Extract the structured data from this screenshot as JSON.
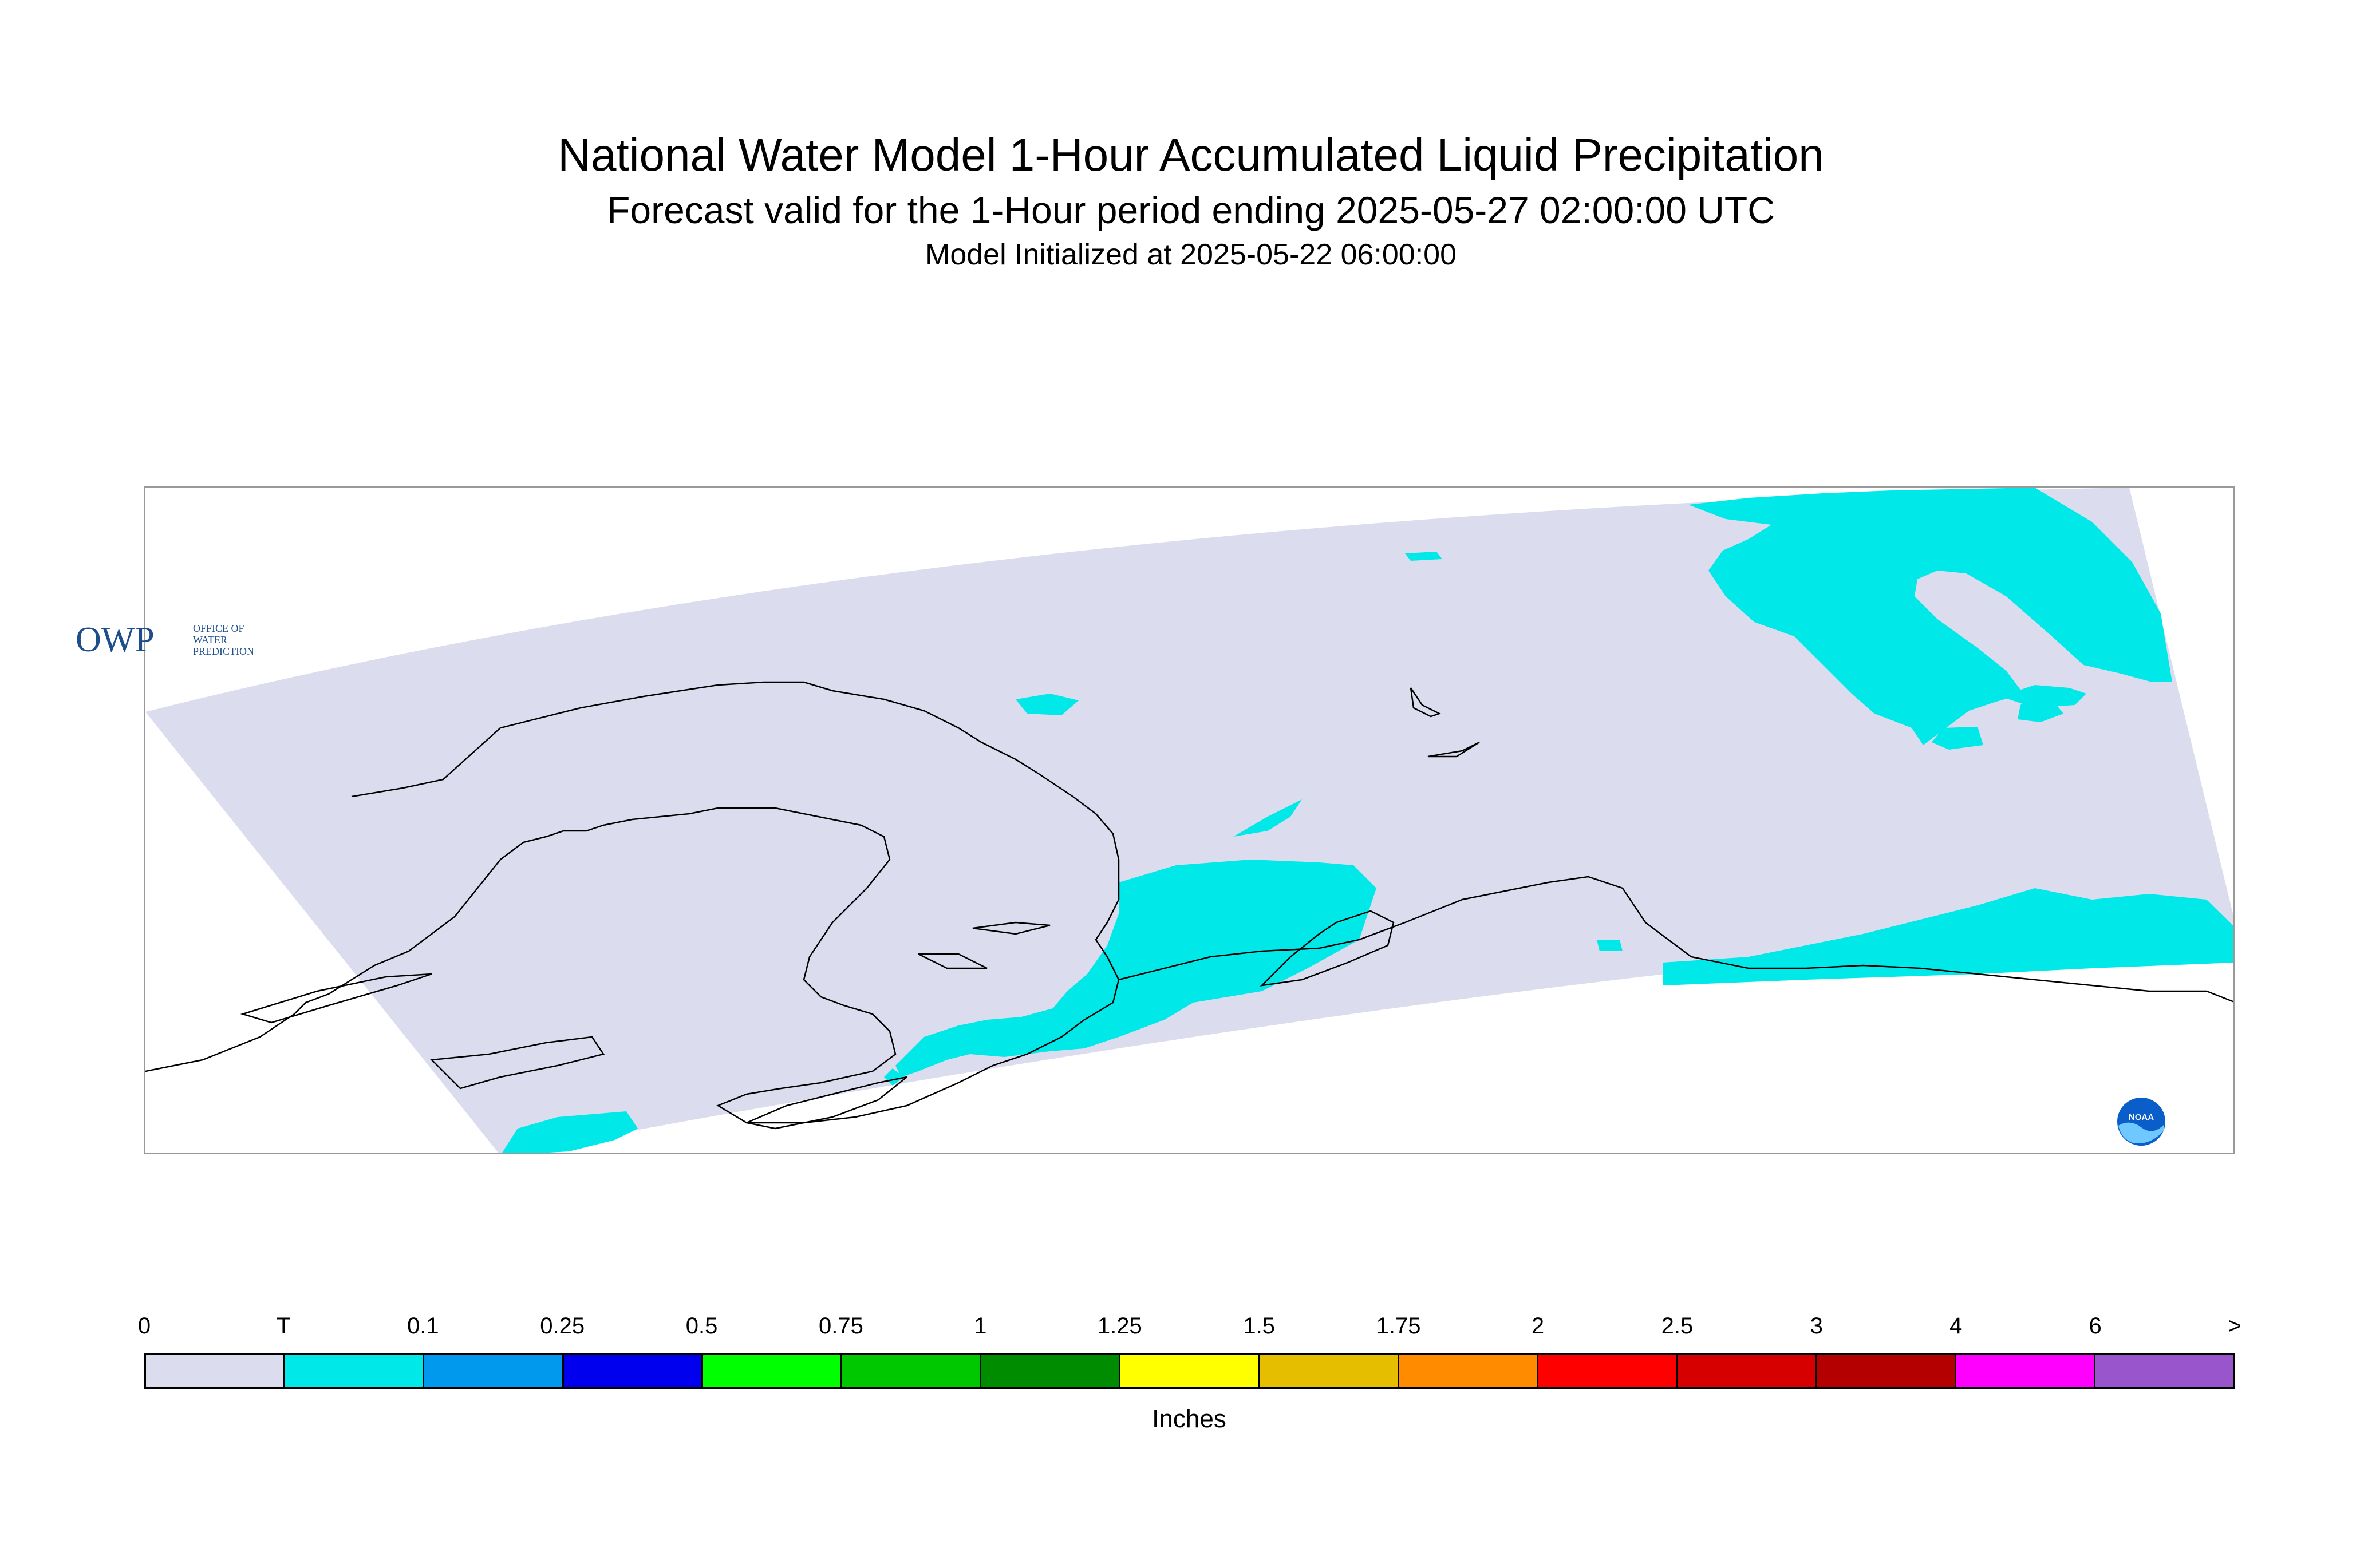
{
  "header": {
    "title": "National Water Model 1-Hour Accumulated Liquid Precipitation",
    "subtitle": "Forecast valid for the 1-Hour period ending 2025-05-27 02:00:00 UTC",
    "init_line": "Model Initialized at 2025-05-22 06:00:00"
  },
  "map": {
    "domain_fill_color": "#dcdcef",
    "precip_fill_color": "#00e8e8",
    "coastline_color": "#000000"
  },
  "logos": {
    "owp_mark": "OWP",
    "owp_text": [
      "OFFICE OF",
      "WATER",
      "PREDICTION"
    ],
    "noaa_mark": "NOAA",
    "noaa_icon": "noaa-emblem-icon"
  },
  "legend": {
    "units": "Inches",
    "labels": [
      "0",
      "T",
      "0.1",
      "0.25",
      "0.5",
      "0.75",
      "1",
      "1.25",
      "1.5",
      "1.75",
      "2",
      "2.5",
      "3",
      "4",
      "6",
      ">"
    ],
    "colors": [
      "#dcdcef",
      "#00e8e8",
      "#0099ee",
      "#0000ee",
      "#00ff00",
      "#00c800",
      "#008c00",
      "#ffff00",
      "#e6be00",
      "#ff8c00",
      "#ff0000",
      "#d70000",
      "#b40000",
      "#ff00ff",
      "#9955cc"
    ]
  }
}
